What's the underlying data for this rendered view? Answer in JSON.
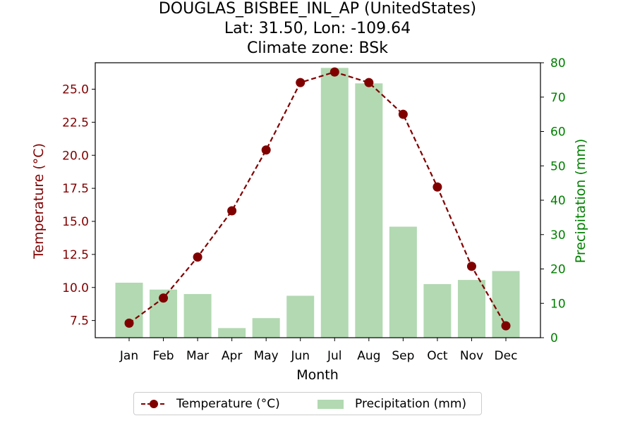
{
  "title_lines": [
    "DOUGLAS_BISBEE_INL_AP (UnitedStates)",
    "Lat: 31.50, Lon: -109.64",
    "Climate zone: BSk"
  ],
  "colors": {
    "temperature": "#800000",
    "precipitation_bar": "#b2d9b2",
    "precipitation_axis": "#008000"
  },
  "chart_data": {
    "type": "bar",
    "title": "DOUGLAS_BISBEE_INL_AP (UnitedStates)\nLat: 31.50, Lon: -109.64\nClimate zone: BSk",
    "xlabel": "Month",
    "ylabel": "Temperature (°C)",
    "y2label": "Precipitation (mm)",
    "categories": [
      "Jan",
      "Feb",
      "Mar",
      "Apr",
      "May",
      "Jun",
      "Jul",
      "Aug",
      "Sep",
      "Oct",
      "Nov",
      "Dec"
    ],
    "ylim": [
      6.2,
      27.0
    ],
    "y2lim": [
      0,
      80
    ],
    "yticks": [
      "7.5",
      "10.0",
      "12.5",
      "15.0",
      "17.5",
      "20.0",
      "22.5",
      "25.0"
    ],
    "y2ticks": [
      "0",
      "10",
      "20",
      "30",
      "40",
      "50",
      "60",
      "70",
      "80"
    ],
    "series": [
      {
        "name": "Temperature (°C)",
        "type": "line",
        "axis": "left",
        "style": "dashed with circle markers",
        "values": [
          7.3,
          9.2,
          12.3,
          15.8,
          20.4,
          25.5,
          26.3,
          25.5,
          23.1,
          17.6,
          11.6,
          7.1
        ]
      },
      {
        "name": "Precipitation (mm)",
        "type": "bar",
        "axis": "right",
        "values": [
          16.0,
          14.0,
          12.7,
          2.8,
          5.7,
          12.2,
          78.5,
          74.0,
          32.3,
          15.6,
          16.8,
          19.4
        ]
      }
    ],
    "grid": false,
    "legend": "bottom-center"
  }
}
